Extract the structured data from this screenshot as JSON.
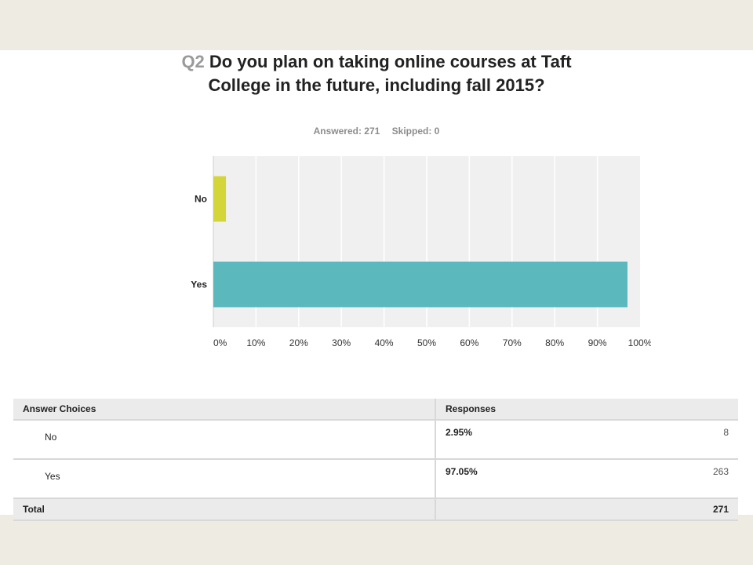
{
  "question": {
    "number": "Q2",
    "text": "Do you plan on taking online courses at Taft College in the future, including fall 2015?"
  },
  "summary": {
    "answered": "Answered: 271",
    "skipped": "Skipped: 0"
  },
  "colors": {
    "no_bar": "#d4d538",
    "yes_bar": "#5bb8bd",
    "plot_bg": "#f0f0f0",
    "grid": "#ffffff"
  },
  "chart_data": {
    "type": "bar",
    "orientation": "horizontal",
    "categories": [
      "No",
      "Yes"
    ],
    "values": [
      2.95,
      97.05
    ],
    "xlim": [
      0,
      100
    ],
    "ticks": [
      "0%",
      "10%",
      "20%",
      "30%",
      "40%",
      "50%",
      "60%",
      "70%",
      "80%",
      "90%",
      "100%"
    ],
    "grid": true
  },
  "table": {
    "headers": [
      "Answer Choices",
      "Responses"
    ],
    "rows": [
      {
        "choice": "No",
        "percent": "2.95%",
        "count": "8"
      },
      {
        "choice": "Yes",
        "percent": "97.05%",
        "count": "263"
      }
    ],
    "total_label": "Total",
    "total_value": "271"
  }
}
